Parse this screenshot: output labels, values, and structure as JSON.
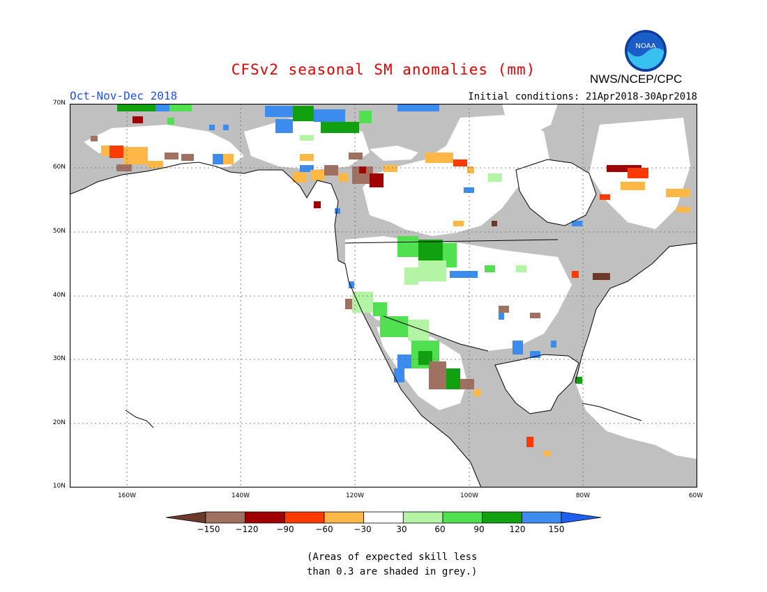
{
  "title": "CFSv2 seasonal SM anomalies (mm)",
  "period": "Oct-Nov-Dec 2018",
  "initial_conditions": "Initial conditions: 21Apr2018-30Apr2018",
  "agency": "NWS/NCEP/CPC",
  "logo_text": "NOAA",
  "lat_labels": [
    "70N",
    "60N",
    "50N",
    "40N",
    "30N",
    "20N",
    "10N"
  ],
  "lon_labels": [
    "160W",
    "140W",
    "120W",
    "100W",
    "80W",
    "60W"
  ],
  "colorbar": {
    "labels": [
      "−150",
      "−120",
      "−90",
      "−60",
      "−30",
      "30",
      "60",
      "90",
      "120",
      "150"
    ],
    "colors": [
      "#6b3a2a",
      "#a07060",
      "#a00000",
      "#ff3a00",
      "#ffb845",
      "#ffffff",
      "#b4f5a5",
      "#50e050",
      "#10a010",
      "#3c8cf0",
      "#2060f0"
    ]
  },
  "map_colors": {
    "ocean": "#ffffff",
    "land_low_skill": "#c0c0c0",
    "land_no_signal": "#ffffff"
  },
  "note": {
    "line1": "(Areas of expected skill less",
    "line2": "than 0.3 are shaded in grey.)"
  }
}
